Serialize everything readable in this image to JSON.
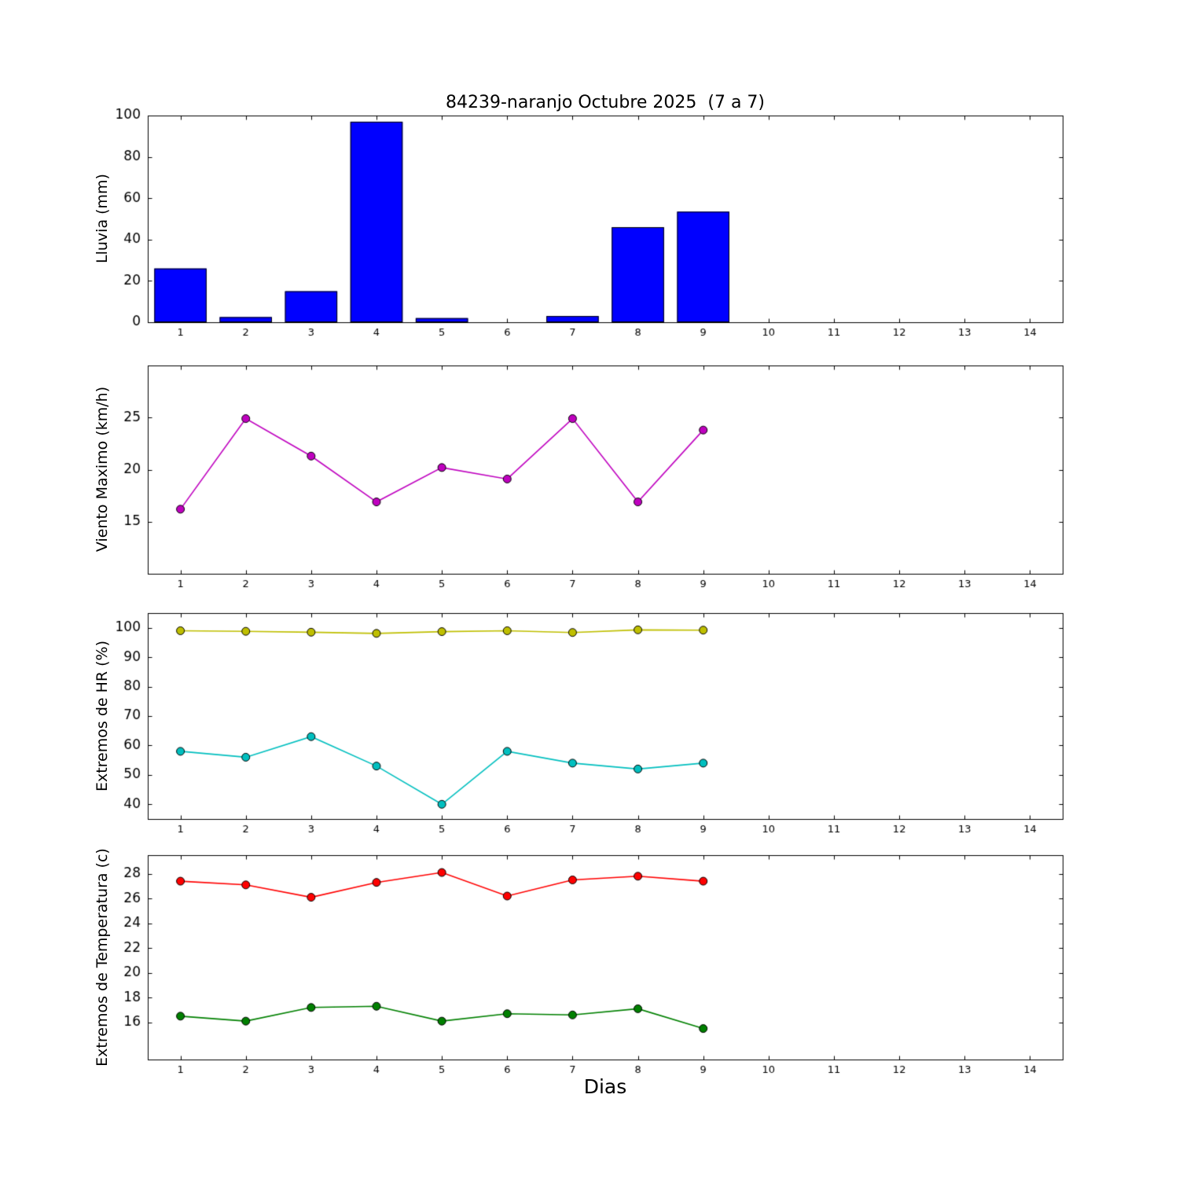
{
  "figure": {
    "title": "84239-naranjo Octubre 2025  (7 a 7)",
    "xlabel": "Dias",
    "background": "#ffffff",
    "frame_color": "#000000"
  },
  "chart_data": [
    {
      "type": "bar",
      "name": "lluvia",
      "ylabel": "Lluvia (mm)",
      "categories": [
        1,
        2,
        3,
        4,
        5,
        6,
        7,
        8,
        9
      ],
      "values": [
        26,
        2.5,
        15,
        97,
        2,
        0,
        3,
        46,
        53.5
      ],
      "color": "#0000ff",
      "bar_width": 0.8,
      "xlim": [
        0.5,
        14.5
      ],
      "ylim": [
        0,
        100
      ],
      "xticks": [
        1,
        2,
        3,
        4,
        5,
        6,
        7,
        8,
        9,
        10,
        11,
        12,
        13,
        14
      ],
      "yticks": [
        0,
        20,
        40,
        60,
        80,
        100
      ],
      "grid": false,
      "legend": "none"
    },
    {
      "type": "line",
      "name": "viento-maximo",
      "ylabel": "Viento Maximo (km/h)",
      "x": [
        1,
        2,
        3,
        4,
        5,
        6,
        7,
        8,
        9
      ],
      "series": [
        {
          "name": "viento",
          "color": "#bf00bf",
          "values": [
            16.2,
            24.9,
            21.3,
            16.9,
            20.2,
            19.1,
            24.9,
            16.9,
            23.8
          ]
        }
      ],
      "xlim": [
        0.5,
        14.5
      ],
      "ylim": [
        10,
        30
      ],
      "xticks": [
        1,
        2,
        3,
        4,
        5,
        6,
        7,
        8,
        9,
        10,
        11,
        12,
        13,
        14
      ],
      "yticks": [
        15,
        20,
        25
      ],
      "grid": false,
      "legend": "none"
    },
    {
      "type": "line",
      "name": "extremos-hr",
      "ylabel": "Extremos de HR (%)",
      "x": [
        1,
        2,
        3,
        4,
        5,
        6,
        7,
        8,
        9
      ],
      "series": [
        {
          "name": "hr-max",
          "color": "#bfbf00",
          "values": [
            99,
            98.8,
            98.5,
            98.1,
            98.7,
            99,
            98.4,
            99.3,
            99.2
          ]
        },
        {
          "name": "hr-min",
          "color": "#00bfbf",
          "values": [
            58,
            56,
            63,
            53,
            40,
            58,
            54,
            52,
            54
          ]
        }
      ],
      "xlim": [
        0.5,
        14.5
      ],
      "ylim": [
        35,
        105
      ],
      "xticks": [
        1,
        2,
        3,
        4,
        5,
        6,
        7,
        8,
        9,
        10,
        11,
        12,
        13,
        14
      ],
      "yticks": [
        40,
        50,
        60,
        70,
        80,
        90,
        100
      ],
      "grid": false,
      "legend": "none"
    },
    {
      "type": "line",
      "name": "extremos-temperatura",
      "ylabel": "Extremos de Temperatura (c)",
      "x": [
        1,
        2,
        3,
        4,
        5,
        6,
        7,
        8,
        9
      ],
      "series": [
        {
          "name": "temp-max",
          "color": "#ff0000",
          "values": [
            27.4,
            27.1,
            26.1,
            27.3,
            28.1,
            26.2,
            27.5,
            27.8,
            27.4
          ]
        },
        {
          "name": "temp-min",
          "color": "#008000",
          "values": [
            16.5,
            16.1,
            17.2,
            17.3,
            16.1,
            16.7,
            16.6,
            17.1,
            15.5
          ]
        }
      ],
      "xlim": [
        0.5,
        14.5
      ],
      "ylim": [
        13,
        29.5
      ],
      "xticks": [
        1,
        2,
        3,
        4,
        5,
        6,
        7,
        8,
        9,
        10,
        11,
        12,
        13,
        14
      ],
      "yticks": [
        16,
        18,
        20,
        22,
        24,
        26,
        28
      ],
      "grid": false,
      "legend": "none"
    }
  ]
}
